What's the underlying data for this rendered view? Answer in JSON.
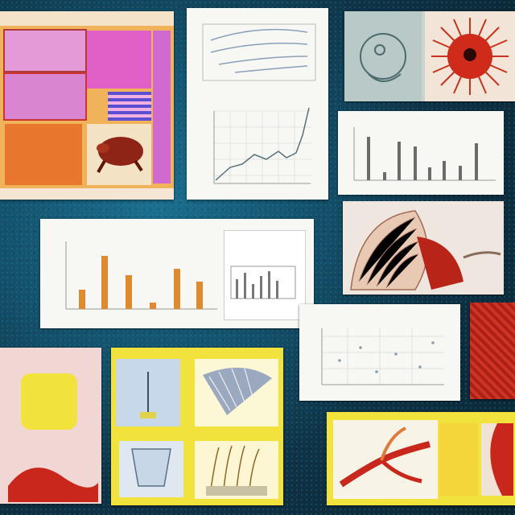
{
  "colors": {
    "backdrop": "#14506a",
    "paper": "#f7f7f4",
    "yellow_board": "#f2e23c",
    "poster_pink": "#d98bd0",
    "poster_orange": "#e8732b",
    "anatomy_red": "#c9271b",
    "bar_orange": "#e08a2e",
    "bar_dark": "#555555"
  },
  "icons": [
    "turtle-illustration",
    "red-star-organism",
    "muscle-tissue-illustration",
    "artery-illustration",
    "drape-illustration"
  ]
}
